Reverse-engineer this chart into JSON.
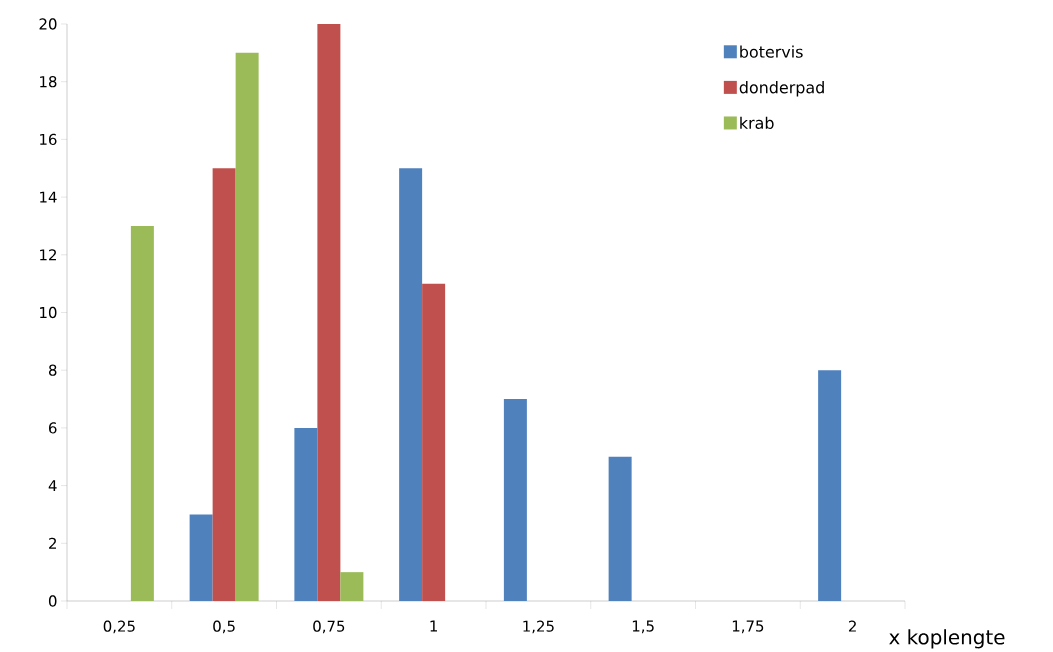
{
  "chart_data": {
    "type": "bar",
    "xlabel": "x koplengte",
    "categories": [
      "0,25",
      "0,5",
      "0,75",
      "1",
      "1,25",
      "1,5",
      "1,75",
      "2"
    ],
    "series": [
      {
        "name": "botervis",
        "color": "#4f81bd",
        "values": [
          0,
          3,
          6,
          15,
          7,
          5,
          0,
          8
        ]
      },
      {
        "name": "donderpad",
        "color": "#c0504d",
        "values": [
          0,
          15,
          20,
          11,
          0,
          0,
          0,
          0
        ]
      },
      {
        "name": "krab",
        "color": "#9bbb59",
        "values": [
          13,
          19,
          1,
          0,
          0,
          0,
          0,
          0
        ]
      }
    ],
    "ylim": [
      0,
      20
    ],
    "yticks": [
      0,
      2,
      4,
      6,
      8,
      10,
      12,
      14,
      16,
      18,
      20
    ],
    "grid": false,
    "legend": "top right"
  }
}
